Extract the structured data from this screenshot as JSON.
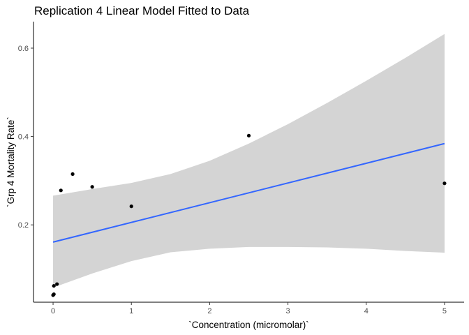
{
  "chart_data": {
    "type": "scatter",
    "title": "Replication 4 Linear Model Fitted to Data",
    "xlabel": "`Concentration (micromolar)`",
    "ylabel": "`Grp 4 Mortality Rate`",
    "xlim": [
      -0.25,
      5.25
    ],
    "ylim": [
      0.025,
      0.66
    ],
    "x_ticks": [
      0,
      1,
      2,
      3,
      4,
      5
    ],
    "x_tick_labels": [
      "0",
      "1",
      "2",
      "3",
      "4",
      "5"
    ],
    "y_ticks": [
      0.2,
      0.4,
      0.6
    ],
    "y_tick_labels": [
      "0.2",
      "0.4",
      "0.6"
    ],
    "grid": false,
    "points": [
      {
        "x": 0.0,
        "y": 0.041
      },
      {
        "x": 0.01,
        "y": 0.043
      },
      {
        "x": 0.01,
        "y": 0.062
      },
      {
        "x": 0.05,
        "y": 0.066
      },
      {
        "x": 0.1,
        "y": 0.278
      },
      {
        "x": 0.25,
        "y": 0.315
      },
      {
        "x": 0.5,
        "y": 0.286
      },
      {
        "x": 1.0,
        "y": 0.242
      },
      {
        "x": 2.5,
        "y": 0.402
      },
      {
        "x": 5.0,
        "y": 0.294
      }
    ],
    "fit": {
      "x": [
        0,
        5
      ],
      "y": [
        0.161,
        0.384
      ],
      "color": "#3366ff"
    },
    "ribbon": {
      "color": "#d4d4d4",
      "x": [
        0.0,
        0.5,
        1.0,
        1.5,
        2.0,
        2.5,
        3.0,
        3.5,
        4.0,
        4.5,
        5.0
      ],
      "upper": [
        0.266,
        0.281,
        0.295,
        0.315,
        0.345,
        0.384,
        0.428,
        0.476,
        0.526,
        0.578,
        0.632
      ],
      "lower": [
        0.058,
        0.09,
        0.118,
        0.138,
        0.146,
        0.15,
        0.15,
        0.149,
        0.146,
        0.141,
        0.137
      ]
    },
    "point_color": "#000000"
  }
}
